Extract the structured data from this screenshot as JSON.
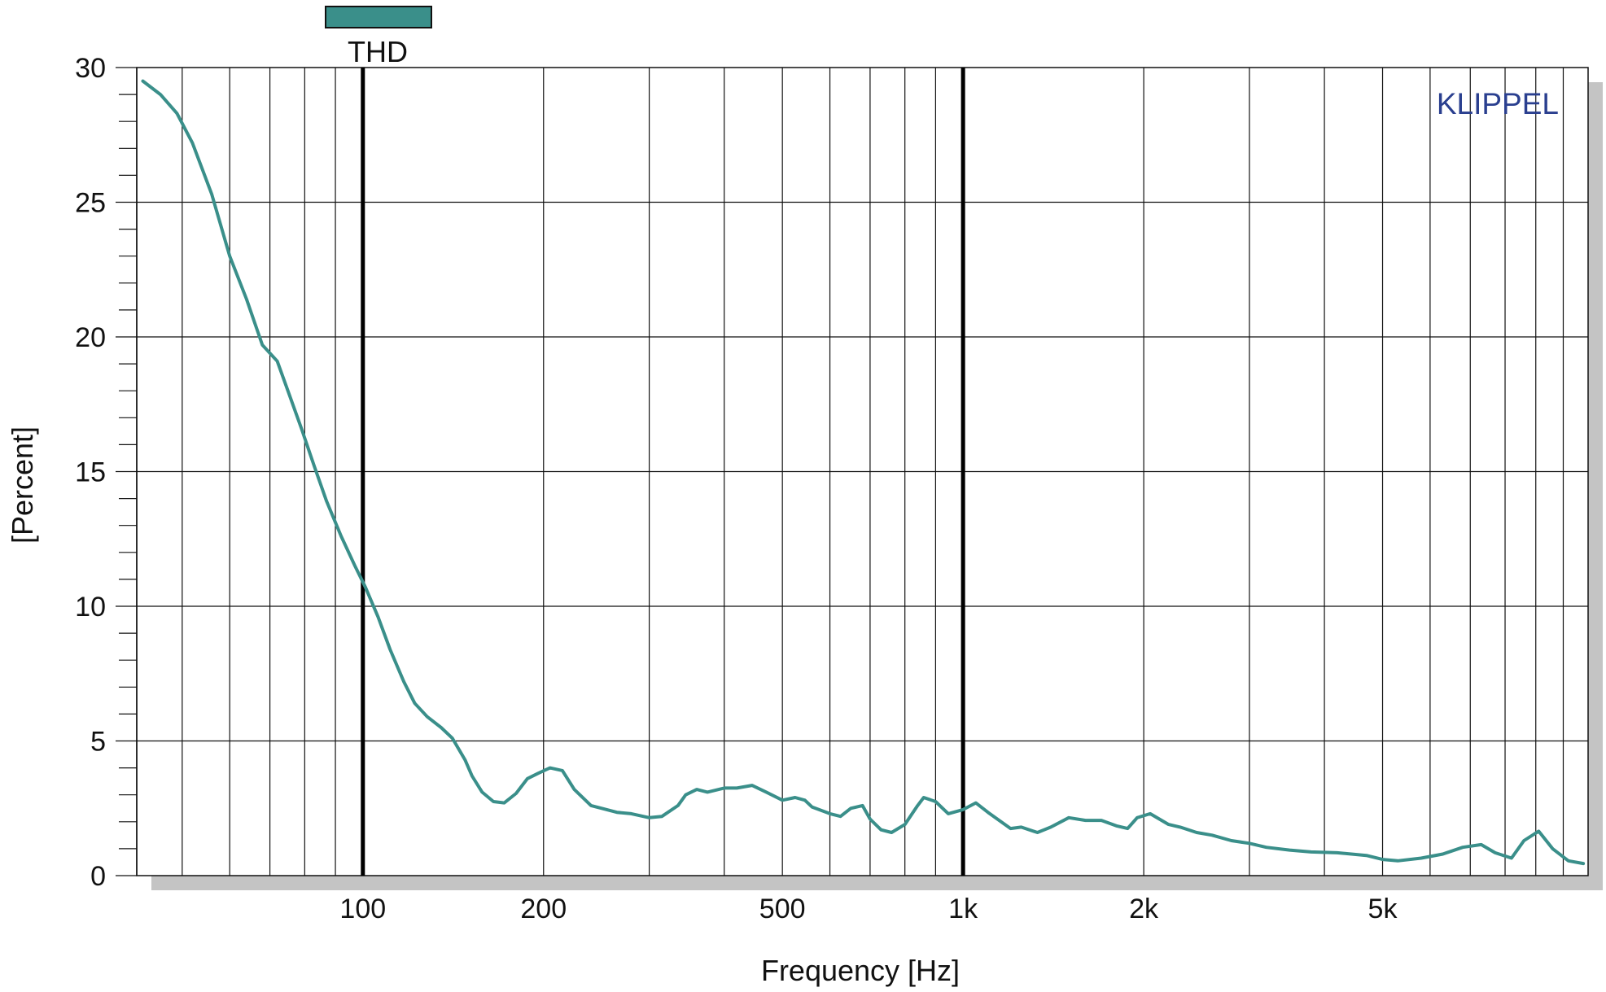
{
  "chart_data": {
    "type": "line",
    "xlabel": "Frequency [Hz]",
    "ylabel": "[Percent]",
    "x_scale": "log",
    "xlim": [
      42,
      11000
    ],
    "ylim": [
      0,
      30
    ],
    "x_ticks": [
      {
        "value": 100,
        "label": "100"
      },
      {
        "value": 200,
        "label": "200"
      },
      {
        "value": 500,
        "label": "500"
      },
      {
        "value": 1000,
        "label": "1k"
      },
      {
        "value": 2000,
        "label": "2k"
      },
      {
        "value": 5000,
        "label": "5k"
      }
    ],
    "y_ticks": [
      {
        "value": 0,
        "label": "0"
      },
      {
        "value": 5,
        "label": "5"
      },
      {
        "value": 10,
        "label": "10"
      },
      {
        "value": 15,
        "label": "15"
      },
      {
        "value": 20,
        "label": "20"
      },
      {
        "value": 25,
        "label": "25"
      },
      {
        "value": 30,
        "label": "30"
      }
    ],
    "x_gridlines": [
      50,
      60,
      70,
      80,
      90,
      100,
      200,
      300,
      400,
      500,
      600,
      700,
      800,
      900,
      1000,
      2000,
      3000,
      4000,
      5000,
      6000,
      7000,
      8000,
      9000,
      10000
    ],
    "y_gridlines": [
      5,
      10,
      15,
      20,
      25
    ],
    "markers": [
      100,
      1000
    ],
    "grid": true,
    "legend_position": "top-left",
    "brand": "KLIPPEL",
    "series": [
      {
        "name": "THD",
        "color": "#3a8f8a",
        "x": [
          43,
          46,
          49,
          52,
          56,
          60,
          64,
          68,
          72,
          75,
          79,
          83,
          87,
          92,
          97,
          101,
          106,
          111,
          117,
          122,
          128,
          135,
          141,
          148,
          152,
          158,
          165,
          172,
          180,
          188,
          196,
          205,
          215,
          225,
          240,
          250,
          265,
          280,
          300,
          315,
          335,
          345,
          360,
          375,
          400,
          420,
          445,
          470,
          500,
          525,
          545,
          560,
          600,
          625,
          650,
          680,
          700,
          730,
          760,
          800,
          840,
          860,
          900,
          945,
          1000,
          1050,
          1100,
          1200,
          1250,
          1330,
          1400,
          1500,
          1600,
          1700,
          1800,
          1880,
          1950,
          2050,
          2200,
          2300,
          2450,
          2600,
          2800,
          3000,
          3200,
          3500,
          3800,
          4200,
          4700,
          5000,
          5300,
          5800,
          6300,
          6800,
          7300,
          7700,
          8200,
          8600,
          9100,
          9600,
          10200,
          10800
        ],
        "y": [
          29.5,
          29.0,
          28.3,
          27.2,
          25.3,
          23.0,
          21.4,
          19.7,
          19.1,
          18.0,
          16.6,
          15.2,
          13.9,
          12.6,
          11.5,
          10.7,
          9.6,
          8.4,
          7.2,
          6.4,
          5.9,
          5.5,
          5.1,
          4.3,
          3.7,
          3.1,
          2.75,
          2.7,
          3.05,
          3.6,
          3.8,
          4.0,
          3.9,
          3.2,
          2.6,
          2.5,
          2.35,
          2.3,
          2.15,
          2.2,
          2.6,
          3.0,
          3.2,
          3.1,
          3.25,
          3.25,
          3.35,
          3.1,
          2.8,
          2.9,
          2.8,
          2.55,
          2.3,
          2.2,
          2.5,
          2.6,
          2.1,
          1.7,
          1.6,
          1.9,
          2.6,
          2.9,
          2.75,
          2.3,
          2.45,
          2.7,
          2.35,
          1.75,
          1.8,
          1.6,
          1.8,
          2.15,
          2.05,
          2.05,
          1.85,
          1.75,
          2.15,
          2.3,
          1.9,
          1.8,
          1.6,
          1.5,
          1.3,
          1.2,
          1.05,
          0.95,
          0.88,
          0.85,
          0.75,
          0.6,
          0.55,
          0.65,
          0.8,
          1.05,
          1.15,
          0.85,
          0.65,
          1.3,
          1.65,
          1.0,
          0.55,
          0.45
        ]
      }
    ]
  }
}
